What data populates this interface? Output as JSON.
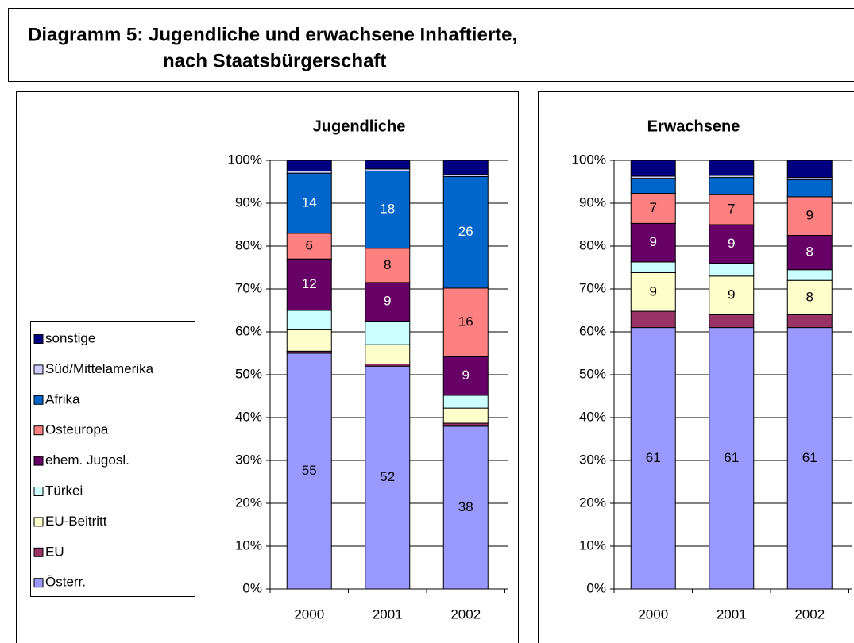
{
  "title": [
    "Diagramm 5: Jugendliche und erwachsene Inhaftierte,",
    "nach Staatsbürgerschaft"
  ],
  "chart_data": [
    {
      "type": "stacked_bar",
      "title": "Jugendliche",
      "categories": [
        "2000",
        "2001",
        "2002"
      ],
      "ylim": [
        0,
        100
      ],
      "yticks": [
        {
          "value": 0,
          "label": "0%"
        },
        {
          "value": 10,
          "label": "10%"
        },
        {
          "value": 20,
          "label": "20%"
        },
        {
          "value": 30,
          "label": "30%"
        },
        {
          "value": 40,
          "label": "40%"
        },
        {
          "value": 50,
          "label": "50%"
        },
        {
          "value": 60,
          "label": "60%"
        },
        {
          "value": 70,
          "label": "70%"
        },
        {
          "value": 80,
          "label": "80%"
        },
        {
          "value": 90,
          "label": "90%"
        },
        {
          "value": 100,
          "label": "100%"
        }
      ],
      "grid": true,
      "legend": "left",
      "series": [
        {
          "name": "Österr.",
          "color": "#9999ff",
          "values": [
            55,
            52,
            38
          ],
          "value_labels": [
            "55",
            "52",
            "38"
          ]
        },
        {
          "name": "EU",
          "color": "#993366",
          "values": [
            0.5,
            0.5,
            0.7
          ],
          "value_labels": [
            null,
            null,
            null
          ]
        },
        {
          "name": "EU-Beitritt",
          "color": "#ffffcc",
          "values": [
            5,
            4.5,
            3.5
          ],
          "value_labels": [
            null,
            null,
            null
          ]
        },
        {
          "name": "Türkei",
          "color": "#ccffff",
          "values": [
            4.5,
            5.5,
            3
          ],
          "value_labels": [
            null,
            null,
            null
          ]
        },
        {
          "name": "ehem. Jugosl.",
          "color": "#660066",
          "values": [
            12,
            9,
            9
          ],
          "value_labels": [
            "12",
            "9",
            "9"
          ]
        },
        {
          "name": "Osteuropa",
          "color": "#ff8080",
          "values": [
            6,
            8,
            16
          ],
          "value_labels": [
            "6",
            "8",
            "16"
          ]
        },
        {
          "name": "Afrika",
          "color": "#0066cc",
          "values": [
            14,
            18,
            26
          ],
          "value_labels": [
            "14",
            "18",
            "26"
          ]
        },
        {
          "name": "Süd/Mittelamerika",
          "color": "#ccccff",
          "values": [
            0.5,
            0.5,
            0.5
          ],
          "value_labels": [
            null,
            null,
            null
          ]
        },
        {
          "name": "sonstige",
          "color": "#000080",
          "values": [
            2.5,
            2,
            3.3
          ],
          "value_labels": [
            null,
            null,
            null
          ]
        }
      ]
    },
    {
      "type": "stacked_bar",
      "title": "Erwachsene",
      "categories": [
        "2000",
        "2001",
        "2002"
      ],
      "ylim": [
        0,
        100
      ],
      "yticks": [
        {
          "value": 0,
          "label": "0%"
        },
        {
          "value": 10,
          "label": "10%"
        },
        {
          "value": 20,
          "label": "20%"
        },
        {
          "value": 30,
          "label": "30%"
        },
        {
          "value": 40,
          "label": "40%"
        },
        {
          "value": 50,
          "label": "50%"
        },
        {
          "value": 60,
          "label": "60%"
        },
        {
          "value": 70,
          "label": "70%"
        },
        {
          "value": 80,
          "label": "80%"
        },
        {
          "value": 90,
          "label": "90%"
        },
        {
          "value": 100,
          "label": "100%"
        }
      ],
      "grid": true,
      "series": [
        {
          "color": "#9999ff",
          "values": [
            61,
            61,
            61
          ],
          "value_labels": [
            "61",
            "61",
            "61"
          ]
        },
        {
          "color": "#993366",
          "values": [
            3.8,
            3,
            3
          ],
          "value_labels": [
            null,
            null,
            null
          ]
        },
        {
          "color": "#ffffcc",
          "values": [
            9,
            9,
            8
          ],
          "value_labels": [
            "9",
            "9",
            "8"
          ]
        },
        {
          "color": "#ccffff",
          "values": [
            2.5,
            3,
            2.5
          ],
          "value_labels": [
            null,
            null,
            null
          ]
        },
        {
          "color": "#660066",
          "values": [
            9,
            9,
            8
          ],
          "value_labels": [
            "9",
            "9",
            "8"
          ]
        },
        {
          "color": "#ff8080",
          "values": [
            7,
            7,
            9
          ],
          "value_labels": [
            "7",
            "7",
            "9"
          ]
        },
        {
          "color": "#0066cc",
          "values": [
            3.5,
            4,
            4
          ],
          "value_labels": [
            null,
            null,
            null
          ]
        },
        {
          "color": "#ccccff",
          "values": [
            0.5,
            0.5,
            0.5
          ],
          "value_labels": [
            null,
            null,
            null
          ]
        },
        {
          "color": "#000080",
          "values": [
            3.7,
            3.5,
            4
          ],
          "value_labels": [
            null,
            null,
            null
          ]
        }
      ]
    }
  ]
}
